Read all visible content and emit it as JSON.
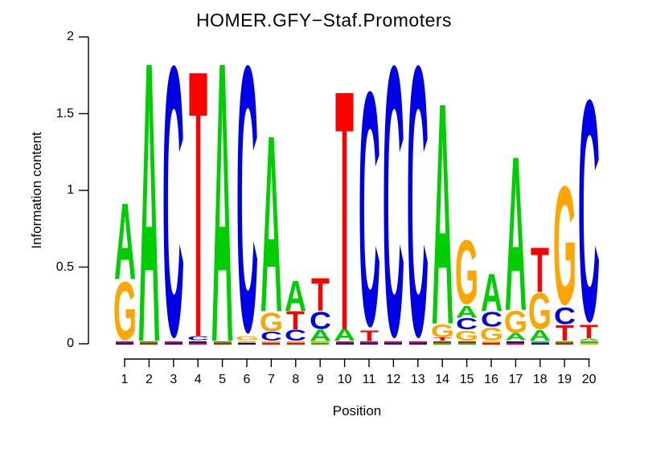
{
  "title": "HOMER.GFY−Staf.Promoters",
  "y_axis": {
    "label": "Information content",
    "tick_labels": [
      "0",
      "0.5",
      "1",
      "1.5",
      "2"
    ],
    "tick_values": [
      0,
      0.5,
      1,
      1.5,
      2
    ],
    "range": [
      0,
      2
    ]
  },
  "x_axis": {
    "label": "Position",
    "tick_labels": [
      "1",
      "2",
      "3",
      "4",
      "5",
      "6",
      "7",
      "8",
      "9",
      "10",
      "11",
      "12",
      "13",
      "14",
      "15",
      "16",
      "17",
      "18",
      "19",
      "20"
    ]
  },
  "colors": {
    "A": "#00CE00",
    "C": "#0000E6",
    "G": "#FFA500",
    "T": "#FF0000"
  },
  "chart_data": {
    "type": "sequence_logo",
    "title": "HOMER.GFY−Staf.Promoters",
    "xlabel": "Position",
    "ylabel": "Information content",
    "ylim": [
      0,
      2
    ],
    "grid": false,
    "legend": false,
    "positions": [
      {
        "pos": 1,
        "stack": [
          {
            "letter": "A",
            "ic": 0.51
          },
          {
            "letter": "G",
            "ic": 0.4
          }
        ],
        "residual": [
          "#FF0000",
          "#0000E6"
        ]
      },
      {
        "pos": 2,
        "stack": [
          {
            "letter": "A",
            "ic": 1.87
          }
        ],
        "residual": [
          "#00CE00",
          "#FF0000"
        ]
      },
      {
        "pos": 3,
        "stack": [
          {
            "letter": "C",
            "ic": 1.87
          }
        ],
        "residual": [
          "#FF0000",
          "#0000E6"
        ]
      },
      {
        "pos": 4,
        "stack": [
          {
            "letter": "T",
            "ic": 1.78
          },
          {
            "letter": "C",
            "ic": 0.03
          }
        ],
        "residual": [
          "#0000E6",
          "#FF0000"
        ]
      },
      {
        "pos": 5,
        "stack": [
          {
            "letter": "A",
            "ic": 1.87
          }
        ],
        "residual": [
          "#00CE00",
          "#FF0000"
        ]
      },
      {
        "pos": 6,
        "stack": [
          {
            "letter": "C",
            "ic": 1.84
          },
          {
            "letter": "G",
            "ic": 0.03
          }
        ],
        "residual": [
          "#FFA500",
          "#0000E6"
        ]
      },
      {
        "pos": 7,
        "stack": [
          {
            "letter": "A",
            "ic": 1.18
          },
          {
            "letter": "G",
            "ic": 0.13
          },
          {
            "letter": "C",
            "ic": 0.06
          }
        ],
        "residual": [
          "#FFA500",
          "#FF0000"
        ]
      },
      {
        "pos": 8,
        "stack": [
          {
            "letter": "A",
            "ic": 0.2
          },
          {
            "letter": "T",
            "ic": 0.12
          },
          {
            "letter": "C",
            "ic": 0.075
          }
        ],
        "residual": [
          "#FFA500",
          "#FF0000"
        ]
      },
      {
        "pos": 9,
        "stack": [
          {
            "letter": "T",
            "ic": 0.22
          },
          {
            "letter": "C",
            "ic": 0.12
          },
          {
            "letter": "A",
            "ic": 0.075
          }
        ],
        "residual": [
          "#FFA500",
          "#00CE00"
        ]
      },
      {
        "pos": 10,
        "stack": [
          {
            "letter": "T",
            "ic": 1.6
          },
          {
            "letter": "A",
            "ic": 0.078
          }
        ],
        "residual": [
          "#FF0000",
          "#0000E6"
        ]
      },
      {
        "pos": 11,
        "stack": [
          {
            "letter": "C",
            "ic": 1.62
          },
          {
            "letter": "T",
            "ic": 0.07
          }
        ],
        "residual": [
          "#FF0000",
          "#0000E6"
        ]
      },
      {
        "pos": 12,
        "stack": [
          {
            "letter": "C",
            "ic": 1.87
          }
        ],
        "residual": [
          "#FF0000",
          "#0000E6"
        ]
      },
      {
        "pos": 13,
        "stack": [
          {
            "letter": "C",
            "ic": 1.87
          }
        ],
        "residual": [
          "#FF0000",
          "#0000E6"
        ]
      },
      {
        "pos": 14,
        "stack": [
          {
            "letter": "A",
            "ic": 1.48
          },
          {
            "letter": "G",
            "ic": 0.09
          },
          {
            "letter": "T",
            "ic": 0.022
          }
        ],
        "residual": [
          "#FF0000",
          "#00CE00"
        ]
      },
      {
        "pos": 15,
        "stack": [
          {
            "letter": "G",
            "ic": 0.44
          },
          {
            "letter": "A",
            "ic": 0.08
          },
          {
            "letter": "C",
            "ic": 0.08
          },
          {
            "letter": "G",
            "ic": 0.07
          }
        ],
        "residual": [
          "#FF0000",
          "#00CE00"
        ]
      },
      {
        "pos": 16,
        "stack": [
          {
            "letter": "A",
            "ic": 0.25
          },
          {
            "letter": "C",
            "ic": 0.1
          },
          {
            "letter": "G",
            "ic": 0.09
          }
        ],
        "residual": [
          "#FFA500",
          "#FF0000"
        ]
      },
      {
        "pos": 17,
        "stack": [
          {
            "letter": "A",
            "ic": 1.03
          },
          {
            "letter": "G",
            "ic": 0.15
          },
          {
            "letter": "A",
            "ic": 0.05
          }
        ],
        "residual": [
          "#0000E6",
          "#FF0000"
        ]
      },
      {
        "pos": 18,
        "stack": [
          {
            "letter": "T",
            "ic": 0.3
          },
          {
            "letter": "G",
            "ic": 0.25
          },
          {
            "letter": "A",
            "ic": 0.068
          }
        ],
        "residual": [
          "#00CE00",
          "#0000E6"
        ]
      },
      {
        "pos": 19,
        "stack": [
          {
            "letter": "G",
            "ic": 0.82
          },
          {
            "letter": "C",
            "ic": 0.115
          },
          {
            "letter": "T",
            "ic": 0.105
          }
        ],
        "residual": [
          "#00CE00",
          "#FF0000"
        ]
      },
      {
        "pos": 20,
        "stack": [
          {
            "letter": "C",
            "ic": 1.53
          },
          {
            "letter": "T",
            "ic": 0.09
          },
          {
            "letter": "A",
            "ic": 0.015
          }
        ],
        "residual": [
          "#00CE00",
          "#FFA500"
        ]
      }
    ]
  }
}
